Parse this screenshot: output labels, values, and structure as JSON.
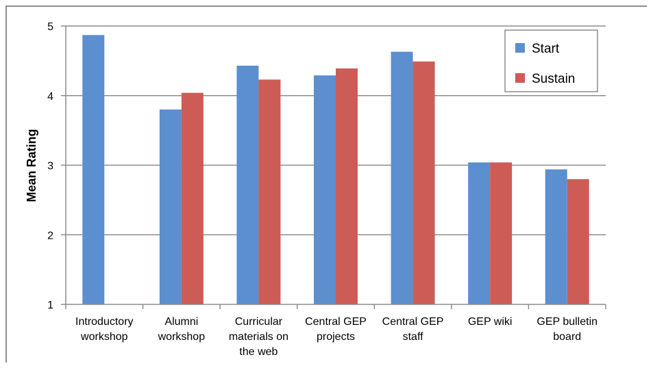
{
  "chart_data": {
    "type": "bar",
    "title": "",
    "xlabel": "",
    "ylabel": "Mean Rating",
    "ylim": [
      1,
      5
    ],
    "yticks": [
      1,
      2,
      3,
      4,
      5
    ],
    "grid": true,
    "legend_position": "top-right",
    "categories": [
      [
        "Introductory",
        "workshop"
      ],
      [
        "Alumni",
        "workshop"
      ],
      [
        "Curricular",
        "materials on",
        "the web"
      ],
      [
        "Central GEP",
        "projects"
      ],
      [
        "Central GEP",
        "staff"
      ],
      [
        "GEP wiki"
      ],
      [
        "GEP bulletin",
        "board"
      ]
    ],
    "series": [
      {
        "name": "Start",
        "color": "#5b8fcf",
        "values": [
          4.87,
          3.8,
          4.43,
          4.29,
          4.63,
          3.04,
          2.94
        ]
      },
      {
        "name": "Sustain",
        "color": "#cd5c57",
        "values": [
          null,
          4.04,
          4.23,
          4.39,
          4.49,
          3.04,
          2.8
        ]
      }
    ]
  }
}
